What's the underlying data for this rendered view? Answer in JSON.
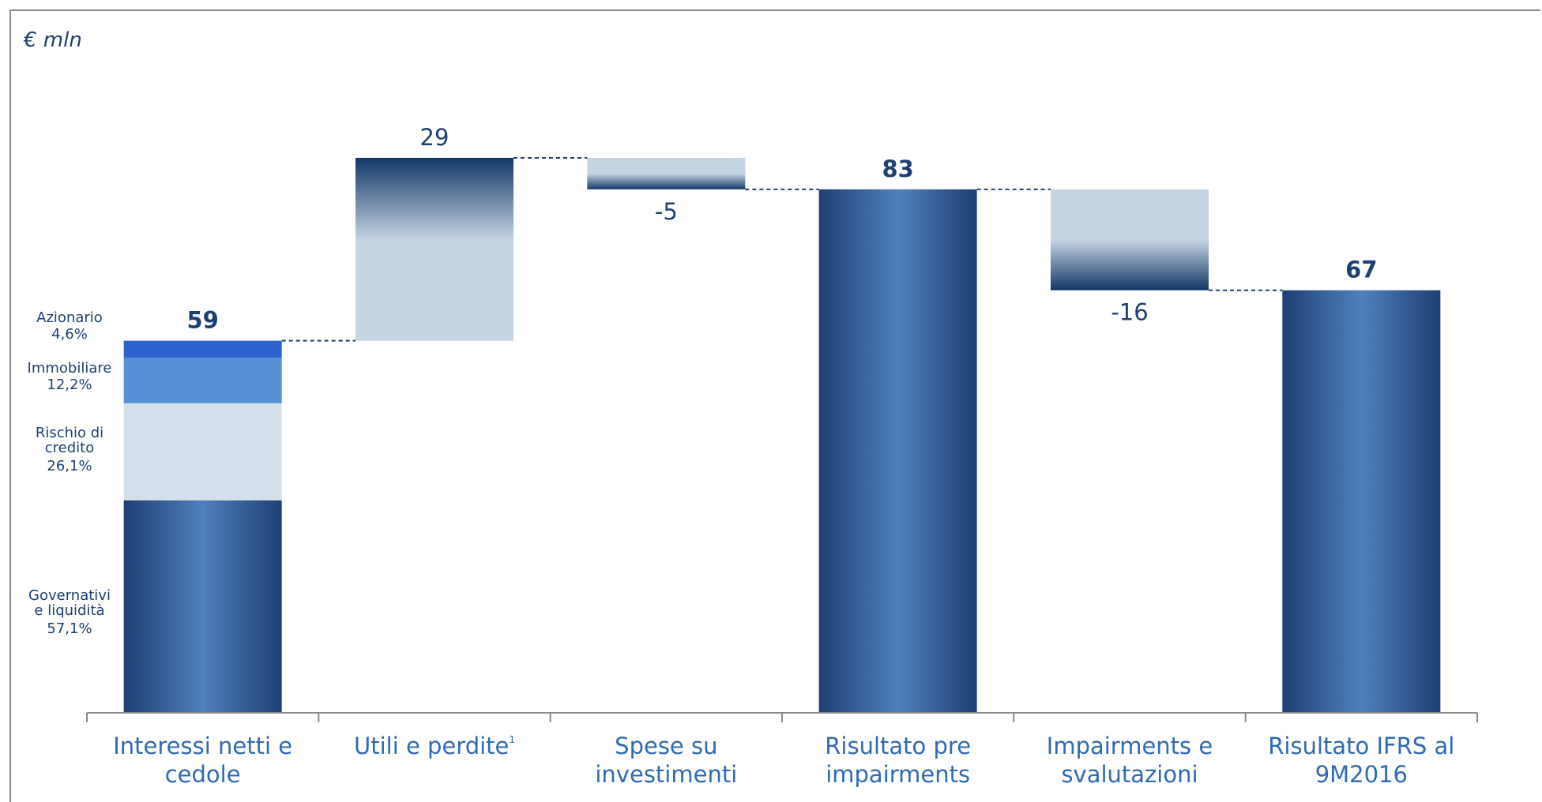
{
  "unit_label": "€ mln",
  "colors": {
    "dark": "#1e3f73",
    "mid": "#4a7bb8",
    "light": "#c5d4e3",
    "azionario": "#2e63cf",
    "immobiliare": "#5890d6",
    "credito": "#d3dfeb",
    "connector": "#1e3f73",
    "label": "#1e3f73",
    "axis_text": "#2f6ab3"
  },
  "chart_data": {
    "type": "waterfall",
    "title": "",
    "xlabel": "",
    "ylabel": "",
    "ylim": [
      0,
      100
    ],
    "grid": false,
    "categories": [
      {
        "label": "Interessi netti e cedole",
        "lines": [
          "Interessi netti e",
          "cedole"
        ]
      },
      {
        "label": "Utili e perdite",
        "lines": [
          "Utili e perdite"
        ],
        "superscript": "1"
      },
      {
        "label": "Spese su investimenti",
        "lines": [
          "Spese su",
          "investimenti"
        ]
      },
      {
        "label": "Risultato pre impairments",
        "lines": [
          "Risultato pre",
          "impairments"
        ]
      },
      {
        "label": "Impairments e svalutazioni",
        "lines": [
          "Impairments e",
          "svalutazioni"
        ]
      },
      {
        "label": "Risultato IFRS al 9M2016",
        "lines": [
          "Risultato IFRS al",
          "9M2016"
        ]
      }
    ],
    "values": [
      59,
      29,
      -5,
      83,
      -16,
      67
    ],
    "kinds": [
      "total",
      "delta",
      "delta",
      "total",
      "delta",
      "total"
    ],
    "value_labels": [
      "59",
      "29",
      "-5",
      "83",
      "-16",
      "67"
    ],
    "bold_labels": [
      true,
      false,
      false,
      true,
      false,
      true
    ],
    "breakdown": {
      "category": "Interessi netti e cedole",
      "segments": [
        {
          "name": "Governativi e liquidità",
          "lines": [
            "Governativi",
            "e liquidità"
          ],
          "pct_label": "57,1%",
          "share": 0.571
        },
        {
          "name": "Rischio di credito",
          "lines": [
            "Rischio di",
            "credito"
          ],
          "pct_label": "26,1%",
          "share": 0.261
        },
        {
          "name": "Immobiliare",
          "lines": [
            "Immobiliare"
          ],
          "pct_label": "12,2%",
          "share": 0.122
        },
        {
          "name": "Azionario",
          "lines": [
            "Azionario"
          ],
          "pct_label": "4,6%",
          "share": 0.046
        }
      ]
    }
  }
}
